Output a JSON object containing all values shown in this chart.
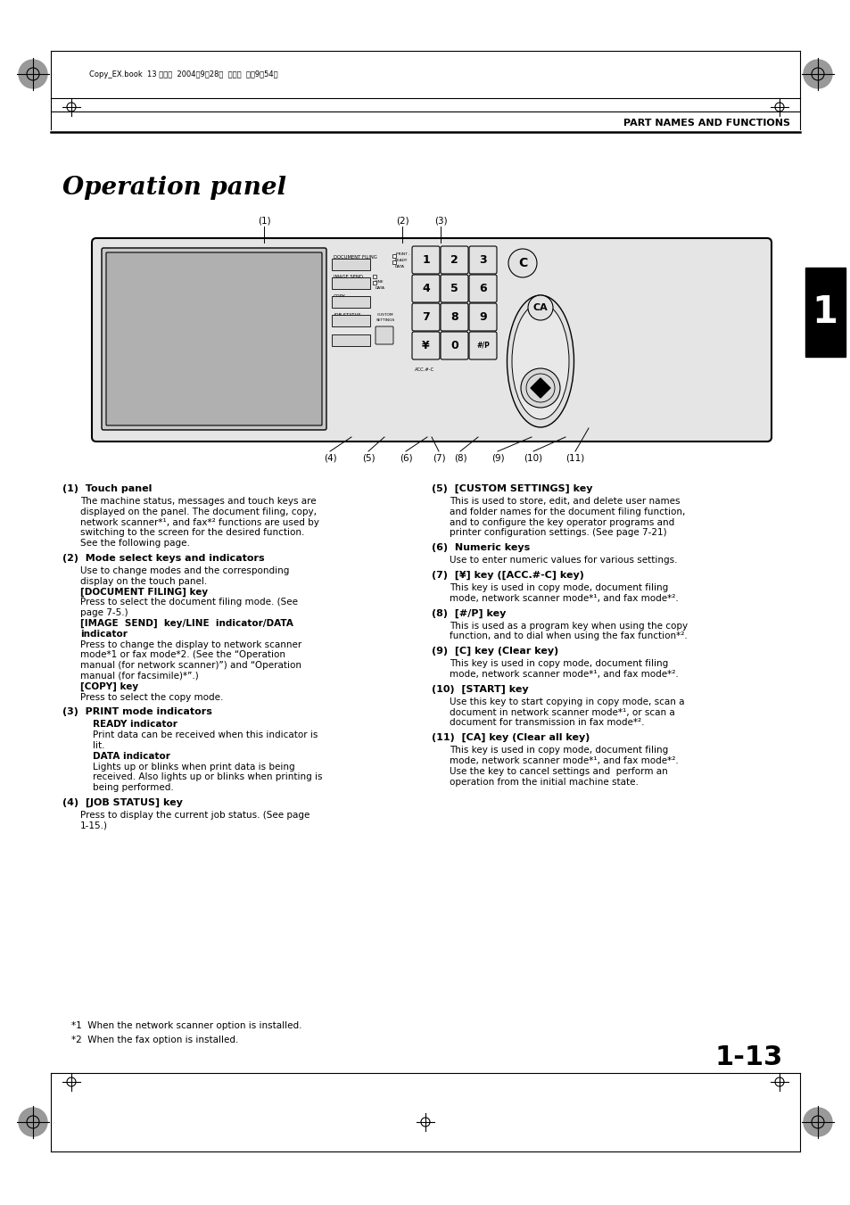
{
  "bg_color": "#ffffff",
  "page_title": "PART NAMES AND FUNCTIONS",
  "section_title": "Operation panel",
  "header_text": "Copy_EX.book  13 ページ  2004年9月28日  火曜日  午後9時54分",
  "chapter_number": "1",
  "page_number": "1-13",
  "footnotes": [
    "*1  When the network scanner option is installed.",
    "*2  When the fax option is installed."
  ],
  "left_descriptions": [
    {
      "num": "(1)",
      "title": "Touch panel",
      "lines": [
        {
          "text": "The machine status, messages and touch keys are",
          "bold": false,
          "indent": 1
        },
        {
          "text": "displayed on the panel. The document filing, copy,",
          "bold": false,
          "indent": 1
        },
        {
          "text": "network scanner*¹, and fax*² functions are used by",
          "bold": false,
          "indent": 1
        },
        {
          "text": "switching to the screen for the desired function.",
          "bold": false,
          "indent": 1
        },
        {
          "text": "See the following page.",
          "bold": false,
          "indent": 1
        }
      ]
    },
    {
      "num": "(2)",
      "title": "Mode select keys and indicators",
      "lines": [
        {
          "text": "Use to change modes and the corresponding",
          "bold": false,
          "indent": 1
        },
        {
          "text": "display on the touch panel.",
          "bold": false,
          "indent": 1
        },
        {
          "text": "[DOCUMENT FILING] key",
          "bold": true,
          "indent": 1
        },
        {
          "text": "Press to select the document filing mode. (See",
          "bold": false,
          "indent": 1
        },
        {
          "text": "page 7-5.)",
          "bold": false,
          "indent": 1
        },
        {
          "text": "[IMAGE  SEND]  key/LINE  indicator/DATA",
          "bold": true,
          "indent": 1
        },
        {
          "text": "indicator",
          "bold": true,
          "indent": 1
        },
        {
          "text": "Press to change the display to network scanner",
          "bold": false,
          "indent": 1
        },
        {
          "text": "mode*1 or fax mode*2. (See the “Operation",
          "bold": false,
          "indent": 1
        },
        {
          "text": "manual (for network scanner)”) and “Operation",
          "bold": false,
          "indent": 1
        },
        {
          "text": "manual (for facsimile)*”.)",
          "bold": false,
          "indent": 1
        },
        {
          "text": "[COPY] key",
          "bold": true,
          "indent": 1
        },
        {
          "text": "Press to select the copy mode.",
          "bold": false,
          "indent": 1
        }
      ]
    },
    {
      "num": "(3)",
      "title": "PRINT mode indicators",
      "lines": [
        {
          "text": "READY indicator",
          "bold": true,
          "indent": 2
        },
        {
          "text": "Print data can be received when this indicator is",
          "bold": false,
          "indent": 2
        },
        {
          "text": "lit.",
          "bold": false,
          "indent": 2
        },
        {
          "text": "DATA indicator",
          "bold": true,
          "indent": 2
        },
        {
          "text": "Lights up or blinks when print data is being",
          "bold": false,
          "indent": 2
        },
        {
          "text": "received. Also lights up or blinks when printing is",
          "bold": false,
          "indent": 2
        },
        {
          "text": "being performed.",
          "bold": false,
          "indent": 2
        }
      ]
    },
    {
      "num": "(4)",
      "title": "[JOB STATUS] key",
      "lines": [
        {
          "text": "Press to display the current job status. (See page",
          "bold": false,
          "indent": 1
        },
        {
          "text": "1-15.)",
          "bold": false,
          "indent": 1
        }
      ]
    }
  ],
  "right_descriptions": [
    {
      "num": "(5)",
      "title": "[CUSTOM SETTINGS] key",
      "lines": [
        {
          "text": "This is used to store, edit, and delete user names",
          "bold": false,
          "indent": 1
        },
        {
          "text": "and folder names for the document filing function,",
          "bold": false,
          "indent": 1
        },
        {
          "text": "and to configure the key operator programs and",
          "bold": false,
          "indent": 1
        },
        {
          "text": "printer configuration settings. (See page 7-21)",
          "bold": false,
          "indent": 1
        }
      ]
    },
    {
      "num": "(6)",
      "title": "Numeric keys",
      "lines": [
        {
          "text": "Use to enter numeric values for various settings.",
          "bold": false,
          "indent": 1
        }
      ]
    },
    {
      "num": "(7)",
      "title": "[¥] key ([ACC.#-C] key)",
      "lines": [
        {
          "text": "This key is used in copy mode, document filing",
          "bold": false,
          "indent": 1
        },
        {
          "text": "mode, network scanner mode*¹, and fax mode*².",
          "bold": false,
          "indent": 1
        }
      ]
    },
    {
      "num": "(8)",
      "title": "[#/P] key",
      "lines": [
        {
          "text": "This is used as a program key when using the copy",
          "bold": false,
          "indent": 1
        },
        {
          "text": "function, and to dial when using the fax function*².",
          "bold": false,
          "indent": 1
        }
      ]
    },
    {
      "num": "(9)",
      "title": "[C] key (Clear key)",
      "lines": [
        {
          "text": "This key is used in copy mode, document filing",
          "bold": false,
          "indent": 1
        },
        {
          "text": "mode, network scanner mode*¹, and fax mode*².",
          "bold": false,
          "indent": 1
        }
      ]
    },
    {
      "num": "(10)",
      "title": "[START] key",
      "lines": [
        {
          "text": "Use this key to start copying in copy mode, scan a",
          "bold": false,
          "indent": 1
        },
        {
          "text": "document in network scanner mode*¹, or scan a",
          "bold": false,
          "indent": 1
        },
        {
          "text": "document for transmission in fax mode*².",
          "bold": false,
          "indent": 1
        }
      ]
    },
    {
      "num": "(11)",
      "title": "[CA] key (Clear all key)",
      "lines": [
        {
          "text": "This key is used in copy mode, document filing",
          "bold": false,
          "indent": 1
        },
        {
          "text": "mode, network scanner mode*¹, and fax mode*².",
          "bold": false,
          "indent": 1
        },
        {
          "text": "Use the key to cancel settings and  perform an",
          "bold": false,
          "indent": 1
        },
        {
          "text": "operation from the initial machine state.",
          "bold": false,
          "indent": 1
        }
      ]
    }
  ]
}
